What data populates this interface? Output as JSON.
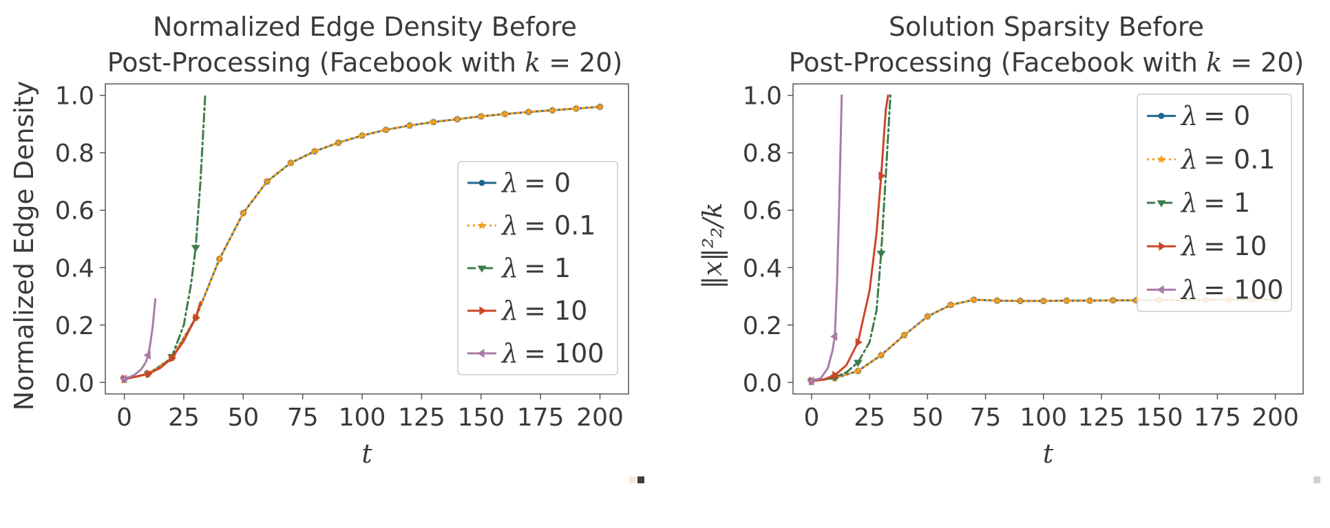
{
  "chart_data": [
    {
      "type": "line",
      "title_line1": "Normalized Edge Density Before",
      "title_line2_prefix": "Post-Processing (Facebook with ",
      "title_k": "k",
      "title_eq": " = 20)",
      "xlabel": "t",
      "ylabel": "Normalized Edge Density",
      "xlim": [
        -8,
        212
      ],
      "ylim": [
        -0.04,
        1.04
      ],
      "xticks": [
        0,
        25,
        50,
        75,
        100,
        125,
        150,
        175,
        200
      ],
      "yticks": [
        0.0,
        0.2,
        0.4,
        0.6,
        0.8,
        1.0
      ],
      "ytick_labels": [
        "0.0",
        "0.2",
        "0.4",
        "0.6",
        "0.8",
        "1.0"
      ],
      "legend_position": "center-right",
      "series": [
        {
          "name": "λ = 0",
          "sym": "λ",
          "val": "= 0",
          "color": "#1f6690",
          "dash": "",
          "marker": "circle",
          "x": [
            0,
            10,
            20,
            30,
            40,
            50,
            60,
            70,
            80,
            90,
            100,
            110,
            120,
            130,
            140,
            150,
            160,
            170,
            180,
            190,
            200
          ],
          "y": [
            0.012,
            0.03,
            0.085,
            0.225,
            0.43,
            0.59,
            0.7,
            0.765,
            0.805,
            0.835,
            0.86,
            0.88,
            0.895,
            0.907,
            0.917,
            0.927,
            0.935,
            0.942,
            0.948,
            0.954,
            0.96
          ]
        },
        {
          "name": "λ = 0.1",
          "sym": "λ",
          "val": "= 0.1",
          "color": "#f59d1f",
          "dash": "3,5",
          "marker": "star",
          "x": [
            0,
            10,
            20,
            30,
            40,
            50,
            60,
            70,
            80,
            90,
            100,
            110,
            120,
            130,
            140,
            150,
            160,
            170,
            180,
            190,
            200
          ],
          "y": [
            0.012,
            0.03,
            0.085,
            0.225,
            0.43,
            0.59,
            0.7,
            0.765,
            0.805,
            0.835,
            0.86,
            0.88,
            0.895,
            0.907,
            0.917,
            0.927,
            0.935,
            0.942,
            0.948,
            0.954,
            0.96
          ]
        },
        {
          "name": "λ = 1",
          "sym": "λ",
          "val": "= 1",
          "color": "#3b7d4a",
          "dash": "12,5,3,5",
          "marker": "tri_down",
          "x": [
            0,
            5,
            10,
            15,
            20,
            25,
            28,
            30,
            32,
            34
          ],
          "y": [
            0.012,
            0.02,
            0.03,
            0.05,
            0.09,
            0.2,
            0.34,
            0.47,
            0.7,
            1.0
          ]
        },
        {
          "name": "λ = 10",
          "sym": "λ",
          "val": "= 10",
          "color": "#cc4528",
          "dash": "",
          "marker": "tri_right",
          "x": [
            0,
            5,
            10,
            15,
            20,
            25,
            30,
            32
          ],
          "y": [
            0.012,
            0.02,
            0.03,
            0.05,
            0.085,
            0.145,
            0.225,
            0.28
          ]
        },
        {
          "name": "λ = 100",
          "sym": "λ",
          "val": "= 100",
          "color": "#a87aa8",
          "dash": "",
          "marker": "tri_left",
          "x": [
            0,
            4,
            7,
            9,
            10,
            11,
            12,
            13
          ],
          "y": [
            0.012,
            0.025,
            0.045,
            0.07,
            0.095,
            0.14,
            0.2,
            0.29
          ]
        }
      ]
    },
    {
      "type": "line",
      "title_line1": "Solution Sparsity Before",
      "title_line2_prefix": "Post-Processing (Facebook with ",
      "title_k": "k",
      "title_eq": " = 20)",
      "xlabel": "t",
      "ylabel": "‖x‖²₂/k",
      "xlim": [
        -8,
        212
      ],
      "ylim": [
        -0.04,
        1.04
      ],
      "xticks": [
        0,
        25,
        50,
        75,
        100,
        125,
        150,
        175,
        200
      ],
      "yticks": [
        0.0,
        0.2,
        0.4,
        0.6,
        0.8,
        1.0
      ],
      "ytick_labels": [
        "0.0",
        "0.2",
        "0.4",
        "0.6",
        "0.8",
        "1.0"
      ],
      "legend_position": "upper-right",
      "series": [
        {
          "name": "λ = 0",
          "sym": "λ",
          "val": "= 0",
          "color": "#1f6690",
          "dash": "",
          "marker": "circle",
          "x": [
            0,
            10,
            20,
            30,
            40,
            50,
            60,
            70,
            80,
            90,
            100,
            110,
            120,
            130,
            140,
            150,
            160,
            170,
            180,
            190,
            200
          ],
          "y": [
            0.005,
            0.015,
            0.04,
            0.095,
            0.165,
            0.23,
            0.27,
            0.288,
            0.285,
            0.284,
            0.284,
            0.285,
            0.285,
            0.286,
            0.286,
            0.287,
            0.287,
            0.288,
            0.288,
            0.289,
            0.29
          ]
        },
        {
          "name": "λ = 0.1",
          "sym": "λ",
          "val": "= 0.1",
          "color": "#f59d1f",
          "dash": "3,5",
          "marker": "star",
          "x": [
            0,
            10,
            20,
            30,
            40,
            50,
            60,
            70,
            80,
            90,
            100,
            110,
            120,
            130,
            140,
            150,
            160,
            170,
            180,
            190,
            200
          ],
          "y": [
            0.005,
            0.015,
            0.04,
            0.095,
            0.165,
            0.23,
            0.27,
            0.288,
            0.285,
            0.284,
            0.284,
            0.285,
            0.285,
            0.286,
            0.286,
            0.287,
            0.287,
            0.288,
            0.288,
            0.289,
            0.29
          ]
        },
        {
          "name": "λ = 1",
          "sym": "λ",
          "val": "= 1",
          "color": "#3b7d4a",
          "dash": "12,5,3,5",
          "marker": "tri_down",
          "x": [
            0,
            5,
            10,
            15,
            20,
            25,
            28,
            30,
            32,
            34
          ],
          "y": [
            0.005,
            0.01,
            0.018,
            0.035,
            0.07,
            0.14,
            0.25,
            0.45,
            0.72,
            1.0
          ]
        },
        {
          "name": "λ = 10",
          "sym": "λ",
          "val": "= 10",
          "color": "#cc4528",
          "dash": "",
          "marker": "tri_right",
          "x": [
            0,
            5,
            10,
            15,
            20,
            25,
            28,
            30,
            32,
            33
          ],
          "y": [
            0.005,
            0.01,
            0.025,
            0.06,
            0.14,
            0.32,
            0.52,
            0.72,
            0.95,
            1.0
          ]
        },
        {
          "name": "λ = 100",
          "sym": "λ",
          "val": "= 100",
          "color": "#a87aa8",
          "dash": "",
          "marker": "tri_left",
          "x": [
            0,
            4,
            7,
            9,
            10,
            11,
            12,
            13
          ],
          "y": [
            0.005,
            0.015,
            0.05,
            0.11,
            0.16,
            0.35,
            0.65,
            1.0
          ]
        }
      ]
    }
  ]
}
